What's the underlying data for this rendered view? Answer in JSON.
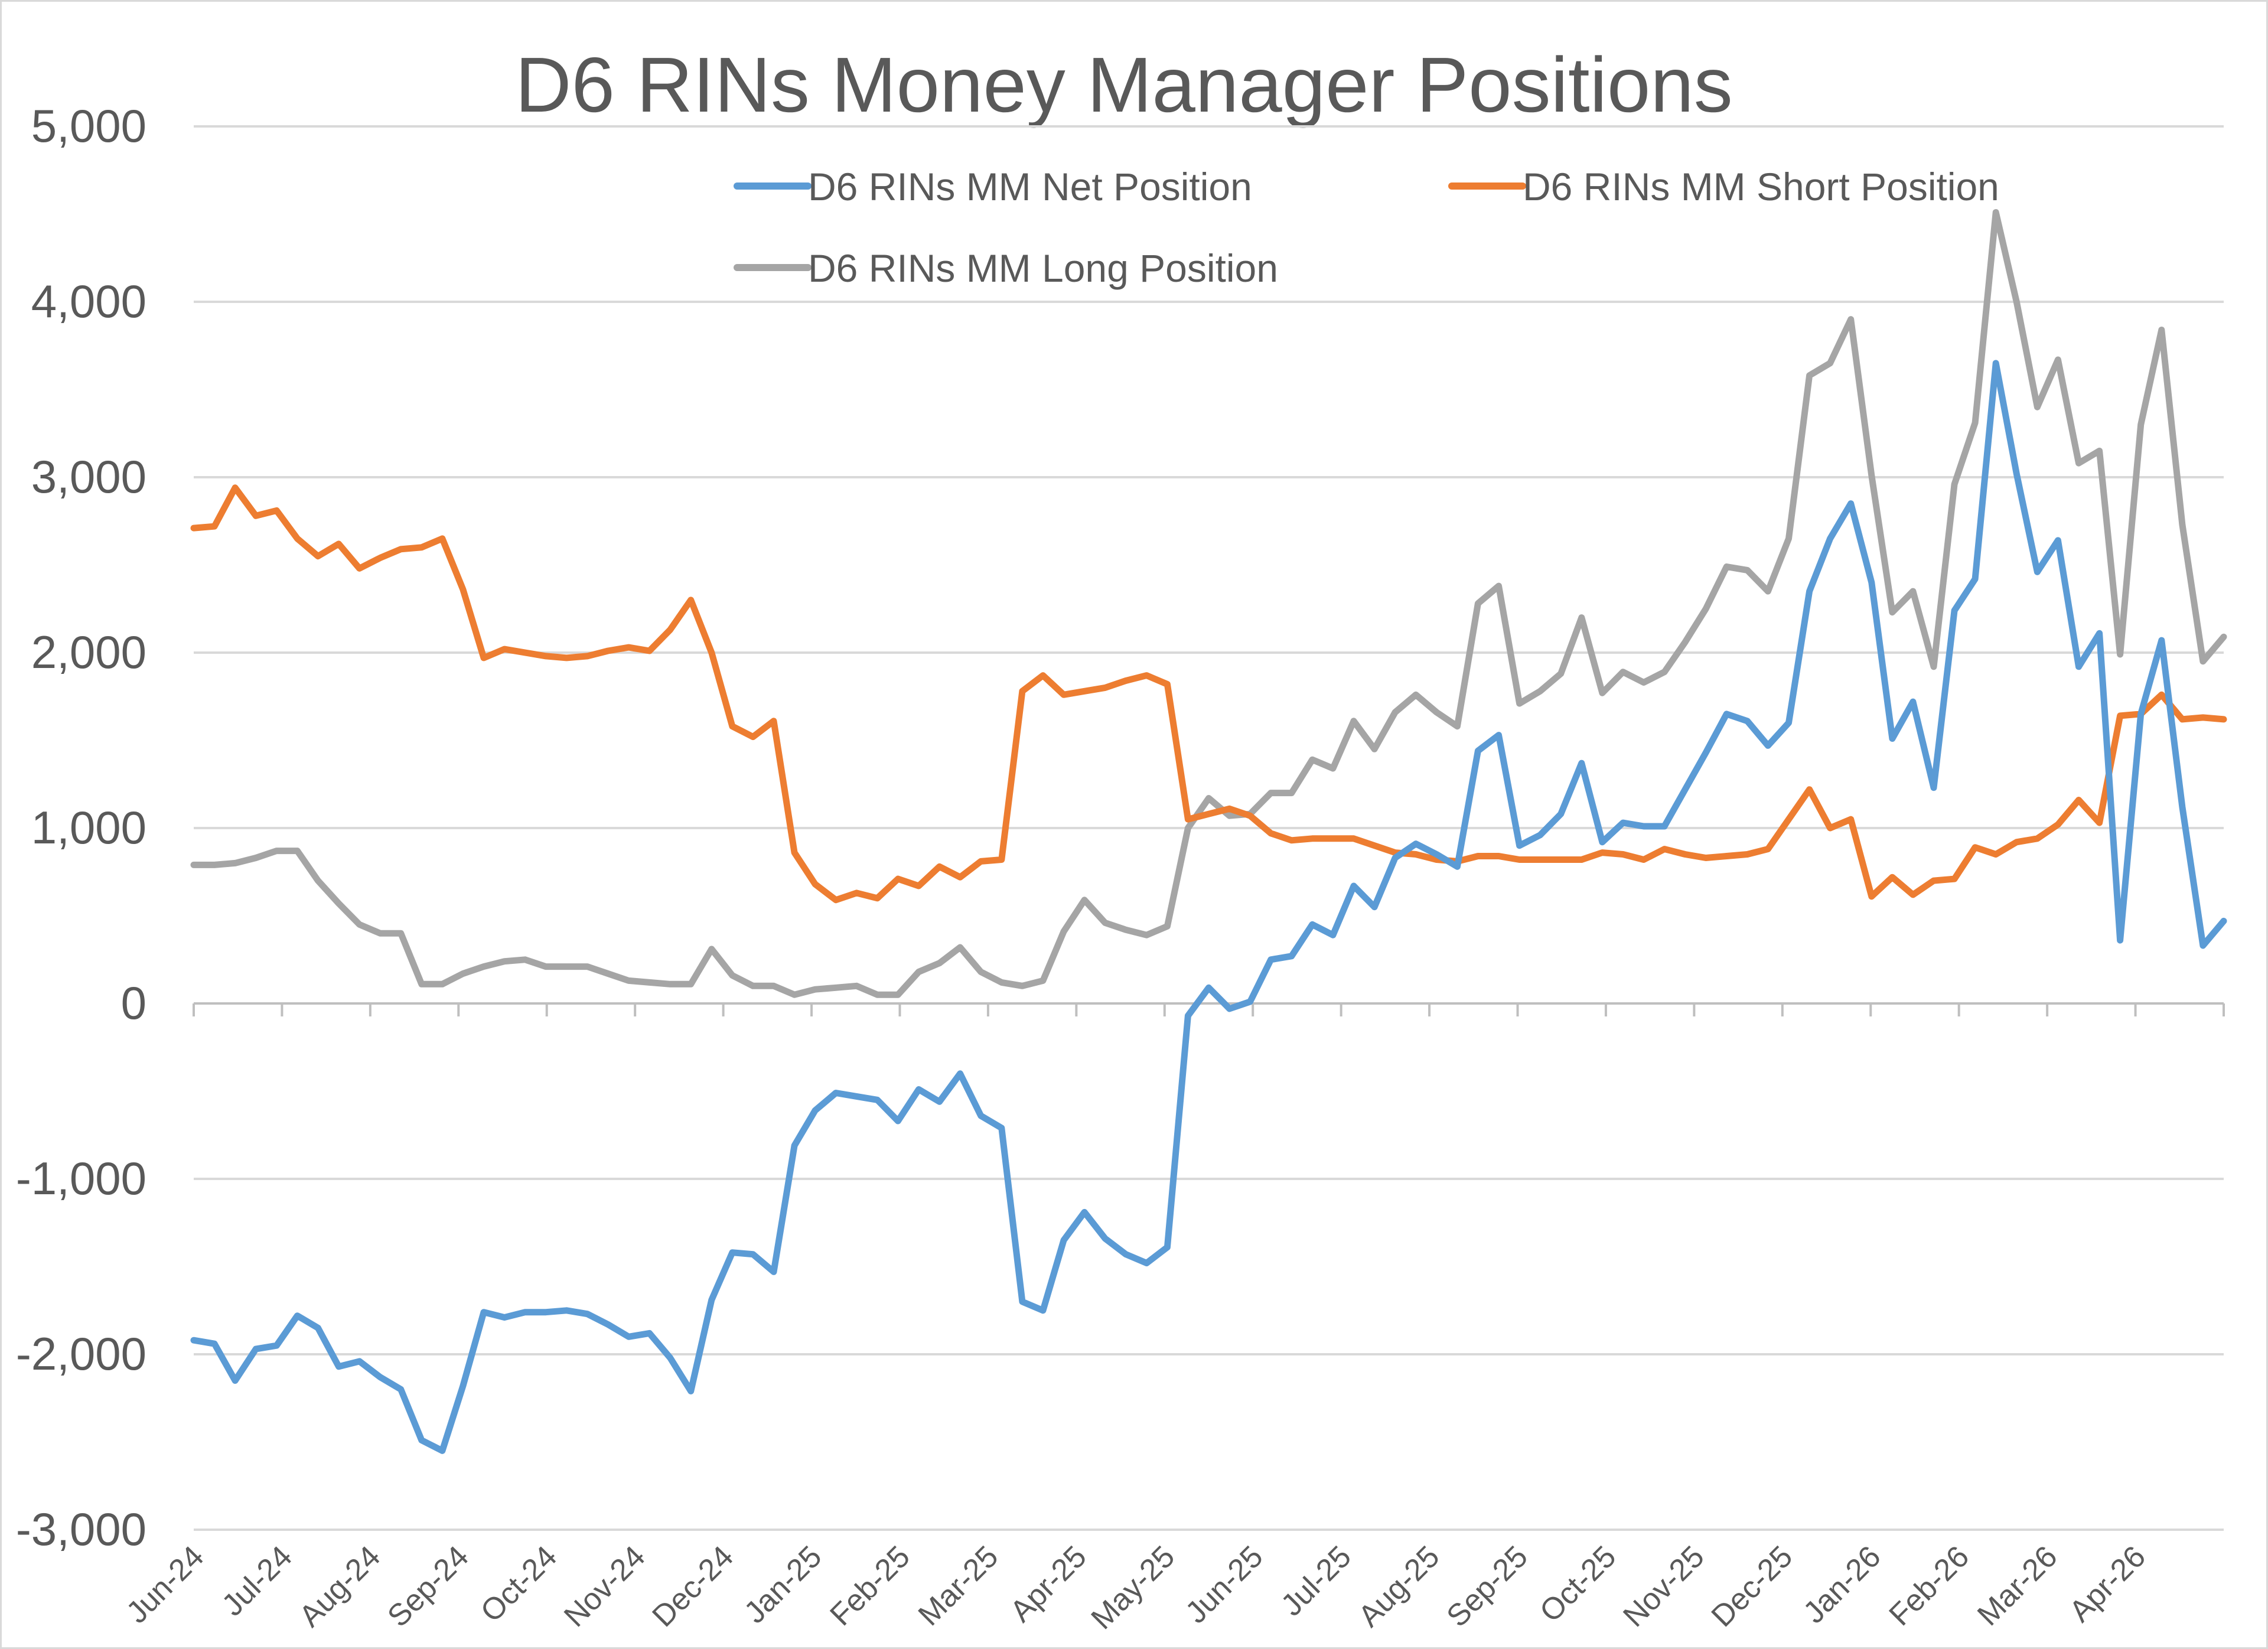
{
  "chart_data": {
    "type": "line",
    "title": "D6 RINs Money Manager Positions",
    "xlabel": "",
    "ylabel": "",
    "ylim": [
      -3000,
      5000
    ],
    "yticks": [
      "-3,000",
      "-2,000",
      "-1,000",
      "0",
      "1,000",
      "2,000",
      "3,000",
      "4,000",
      "5,000"
    ],
    "ytick_values": [
      -3000,
      -2000,
      -1000,
      0,
      1000,
      2000,
      3000,
      4000,
      5000
    ],
    "xtick_labels": [
      "Jun-24",
      "Jul-24",
      "Aug-24",
      "Sep-24",
      "Oct-24",
      "Nov-24",
      "Dec-24",
      "Jan-25",
      "Feb-25",
      "Mar-25",
      "Apr-25",
      "May-25",
      "Jun-25",
      "Jul-25",
      "Aug-25",
      "Sep-25",
      "Oct-25",
      "Nov-25",
      "Dec-25",
      "Jan-26",
      "Feb-26",
      "Mar-26",
      "Apr-26"
    ],
    "grid": true,
    "legend": "top",
    "series": [
      {
        "name": "D6 RINs MM Net Position",
        "color": "#5B9BD5",
        "values": [
          -1920,
          -1940,
          -2150,
          -1970,
          -1950,
          -1780,
          -1850,
          -2070,
          -2040,
          -2130,
          -2200,
          -2490,
          -2550,
          -2180,
          -1760,
          -1790,
          -1760,
          -1760,
          -1750,
          -1770,
          -1830,
          -1900,
          -1880,
          -2020,
          -2210,
          -1690,
          -1420,
          -1430,
          -1530,
          -810,
          -610,
          -510,
          -530,
          -550,
          -670,
          -490,
          -560,
          -400,
          -640,
          -710,
          -1700,
          -1750,
          -1350,
          -1190,
          -1340,
          -1430,
          -1480,
          -1390,
          -70,
          90,
          -30,
          10,
          250,
          270,
          450,
          390,
          670,
          550,
          830,
          910,
          850,
          780,
          1440,
          1530,
          900,
          960,
          1080,
          1370,
          920,
          1030,
          1010,
          1010,
          1220,
          1430,
          1650,
          1610,
          1470,
          1600,
          2350,
          2650,
          2850,
          2400,
          1510,
          1720,
          1230,
          2240,
          2420,
          3650,
          3020,
          2460,
          2640,
          1920,
          2110,
          360,
          1650,
          2070,
          1120,
          330,
          470
        ]
      },
      {
        "name": "D6 RINs MM Short Position",
        "color": "#ED7D31",
        "values": [
          2710,
          2720,
          2940,
          2780,
          2810,
          2650,
          2550,
          2620,
          2480,
          2540,
          2590,
          2600,
          2650,
          2360,
          1970,
          2020,
          2000,
          1980,
          1970,
          1980,
          2010,
          2030,
          2010,
          2130,
          2300,
          2000,
          1580,
          1520,
          1610,
          860,
          680,
          590,
          630,
          600,
          710,
          670,
          780,
          720,
          810,
          820,
          1780,
          1870,
          1760,
          1780,
          1800,
          1840,
          1870,
          1820,
          1050,
          1080,
          1110,
          1070,
          970,
          930,
          940,
          940,
          940,
          900,
          860,
          850,
          820,
          810,
          840,
          840,
          820,
          820,
          820,
          820,
          860,
          850,
          820,
          880,
          850,
          830,
          840,
          850,
          880,
          1050,
          1220,
          1000,
          1050,
          610,
          720,
          620,
          700,
          710,
          890,
          850,
          920,
          940,
          1020,
          1160,
          1030,
          1640,
          1650,
          1760,
          1620,
          1630,
          1620
        ]
      },
      {
        "name": "D6 RINs MM Long Position",
        "color": "#A5A5A5",
        "values": [
          790,
          790,
          800,
          830,
          870,
          870,
          700,
          570,
          450,
          400,
          400,
          110,
          110,
          170,
          210,
          240,
          250,
          210,
          210,
          210,
          170,
          130,
          120,
          110,
          110,
          310,
          160,
          100,
          100,
          50,
          80,
          90,
          100,
          50,
          50,
          180,
          230,
          320,
          180,
          120,
          100,
          130,
          410,
          590,
          460,
          420,
          390,
          440,
          1000,
          1170,
          1070,
          1080,
          1200,
          1200,
          1390,
          1340,
          1610,
          1450,
          1660,
          1760,
          1660,
          1580,
          2280,
          2380,
          1710,
          1780,
          1880,
          2200,
          1770,
          1890,
          1830,
          1890,
          2060,
          2250,
          2490,
          2470,
          2350,
          2650,
          3580,
          3650,
          3900,
          3010,
          2230,
          2350,
          1920,
          2960,
          3310,
          4510,
          4000,
          3400,
          3670,
          3080,
          3150,
          1990,
          3300,
          3840,
          2730,
          1950,
          2090
        ]
      }
    ]
  }
}
